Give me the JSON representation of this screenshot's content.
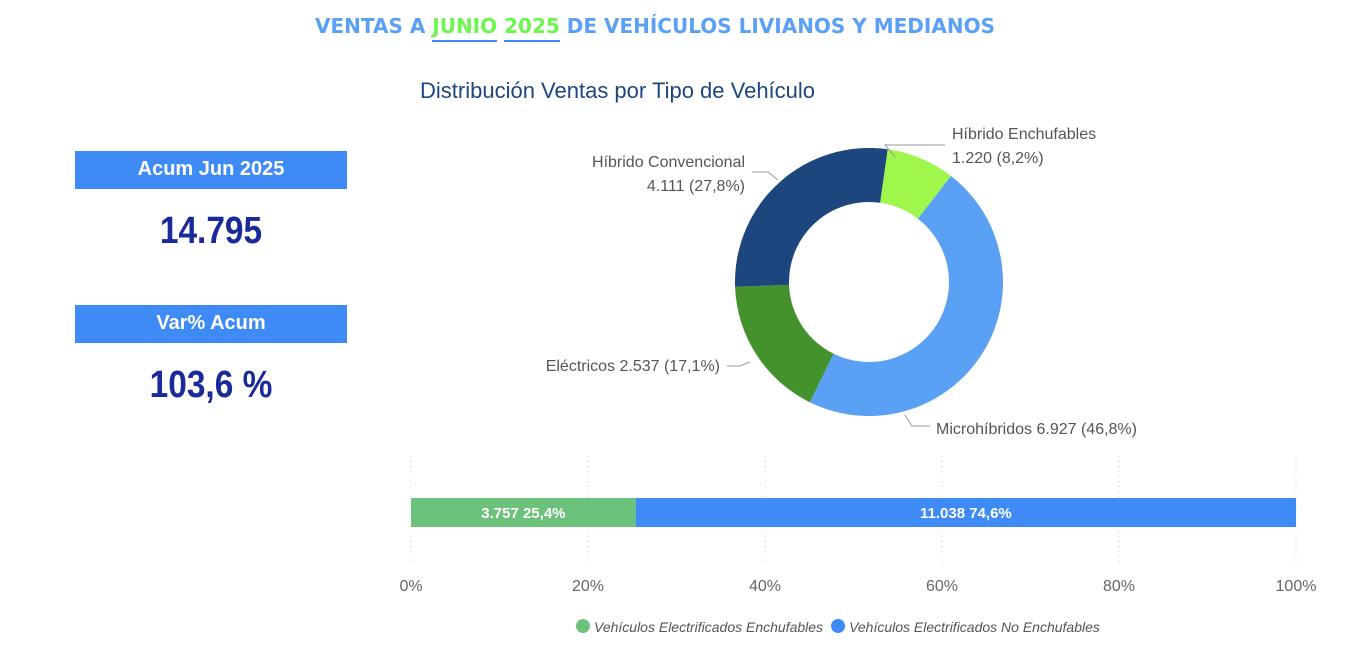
{
  "header": {
    "title_pre": "VENTAS A ",
    "title_month": "JUNIO",
    "title_year": "2025",
    "title_post": " DE VEHÍCULOS LIVIANOS Y MEDIANOS"
  },
  "kpis": [
    {
      "label": "Acum Jun 2025",
      "value": "14.795"
    },
    {
      "label": "Var% Acum",
      "value": "103,6 %"
    }
  ],
  "chart_data": [
    {
      "type": "pie",
      "title": "Distribución Ventas por Tipo de Vehículo",
      "donut": true,
      "slices": [
        {
          "name": "Híbrido Enchufables",
          "value": 1220,
          "value_label": "1.220",
          "pct_label": "(8,2%)",
          "color": "#a0f74c"
        },
        {
          "name": "Microhíbridos",
          "value": 6927,
          "value_label": "6.927",
          "pct_label": "(46,8%)",
          "color": "#5aa1f5"
        },
        {
          "name": "Eléctricos",
          "value": 2537,
          "value_label": "2.537",
          "pct_label": "(17,1%)",
          "color": "#43922d"
        },
        {
          "name": "Híbrido Convencional",
          "value": 4111,
          "value_label": "4.111",
          "pct_label": "(27,8%)",
          "color": "#1e467e"
        }
      ]
    },
    {
      "type": "bar",
      "orientation": "horizontal",
      "stacked": "100%",
      "x_ticks": [
        "0%",
        "20%",
        "40%",
        "60%",
        "80%",
        "100%"
      ],
      "xlim": [
        0,
        100
      ],
      "series": [
        {
          "name": "Vehículos Electrificados Enchufables",
          "value": 3757,
          "percent": 25.4,
          "label": "3.757 25,4%",
          "color": "#6cc27a"
        },
        {
          "name": "Vehículos Electrificados No Enchufables",
          "value": 11038,
          "percent": 74.6,
          "label": "11.038 74,6%",
          "color": "#3f8bf5"
        }
      ],
      "legend_position": "bottom"
    }
  ]
}
